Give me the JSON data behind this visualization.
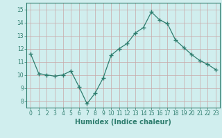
{
  "x": [
    0,
    1,
    2,
    3,
    4,
    5,
    6,
    7,
    8,
    9,
    10,
    11,
    12,
    13,
    14,
    15,
    16,
    17,
    18,
    19,
    20,
    21,
    22,
    23
  ],
  "y": [
    11.6,
    10.1,
    10.0,
    9.9,
    10.0,
    10.3,
    9.1,
    7.8,
    8.6,
    9.75,
    11.5,
    12.0,
    12.4,
    13.2,
    13.6,
    14.8,
    14.2,
    13.9,
    12.65,
    12.1,
    11.55,
    11.1,
    10.8,
    10.4
  ],
  "line_color": "#2e7d6e",
  "marker": "+",
  "marker_size": 4,
  "bg_color": "#d0eeee",
  "grid_color": "#c8a8a8",
  "xlabel": "Humidex (Indice chaleur)",
  "ylim": [
    7.5,
    15.5
  ],
  "xlim": [
    -0.5,
    23.5
  ],
  "yticks": [
    8,
    9,
    10,
    11,
    12,
    13,
    14,
    15
  ],
  "xticks": [
    0,
    1,
    2,
    3,
    4,
    5,
    6,
    7,
    8,
    9,
    10,
    11,
    12,
    13,
    14,
    15,
    16,
    17,
    18,
    19,
    20,
    21,
    22,
    23
  ],
  "axis_color": "#2e7d6e",
  "tick_fontsize": 5.5,
  "xlabel_fontsize": 7
}
